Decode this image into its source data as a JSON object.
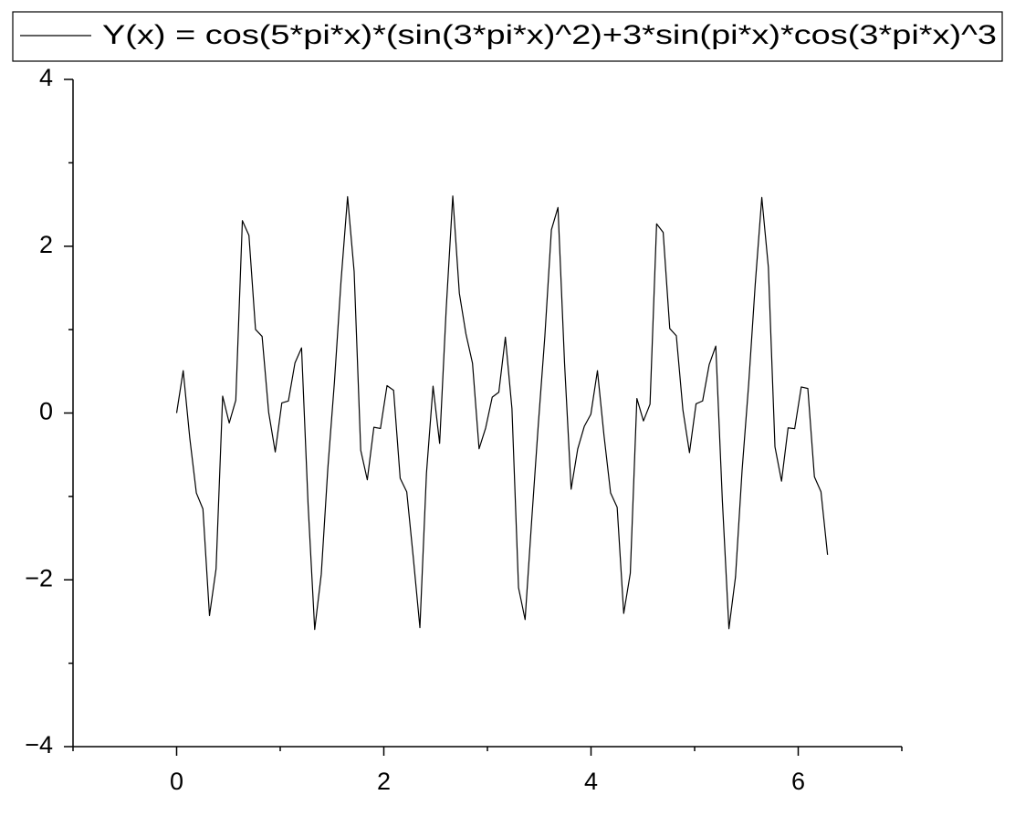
{
  "chart_data": {
    "type": "line",
    "legend": "top",
    "grid": false,
    "x": [
      0,
      0.0635,
      0.1269,
      0.1904,
      0.2539,
      0.3173,
      0.3808,
      0.4443,
      0.5077,
      0.5712,
      0.6347,
      0.6981,
      0.7616,
      0.8251,
      0.8885,
      0.952,
      1.0155,
      1.0789,
      1.1424,
      1.2059,
      1.2693,
      1.3328,
      1.3963,
      1.4597,
      1.5232,
      1.5867,
      1.6501,
      1.7136,
      1.7771,
      1.8405,
      1.904,
      1.9675,
      2.0309,
      2.0944,
      2.1579,
      2.2213,
      2.2848,
      2.3483,
      2.4117,
      2.4752,
      2.5387,
      2.6021,
      2.6656,
      2.7291,
      2.7925,
      2.856,
      2.9195,
      2.9829,
      3.0464,
      3.1099,
      3.1733,
      3.2368,
      3.3003,
      3.3637,
      3.4272,
      3.4907,
      3.5541,
      3.6176,
      3.6811,
      3.7445,
      3.808,
      3.8715,
      3.9349,
      3.9984,
      4.0619,
      4.1253,
      4.1888,
      4.2523,
      4.3157,
      4.3792,
      4.4427,
      4.5061,
      4.5696,
      4.6331,
      4.6965,
      4.76,
      4.8235,
      4.8869,
      4.9504,
      5.0139,
      5.0773,
      5.1408,
      5.2043,
      5.2677,
      5.3312,
      5.3947,
      5.4581,
      5.5216,
      5.5851,
      5.6485,
      5.712,
      5.7755,
      5.8389,
      5.9024,
      5.9659,
      6.0293,
      6.0928,
      6.1563,
      6.2197,
      6.2832
    ],
    "series": [
      {
        "name": "Y(x) = cos(5*pi*x)*(sin(3*pi*x)^2)+3*sin(pi*x)*cos(3*pi*x)^3",
        "color": "#000000",
        "values": [
          0,
          0.5077,
          -0.2987,
          -0.9585,
          -1.1508,
          -2.4289,
          -1.8676,
          0.2023,
          -0.1194,
          0.1535,
          2.3062,
          2.1301,
          1.0018,
          0.9187,
          0.0084,
          -0.4671,
          0.1207,
          0.1447,
          0.601,
          0.7807,
          -1.1058,
          -2.5956,
          -1.9326,
          -0.6616,
          0.37,
          1.5775,
          2.5935,
          1.6955,
          -0.4461,
          -0.8009,
          -0.1712,
          -0.1857,
          0.3287,
          0.272,
          -0.7825,
          -0.9449,
          -1.7364,
          -2.5736,
          -0.721,
          0.3222,
          -0.3637,
          1.2468,
          2.6026,
          1.4355,
          0.9495,
          0.5967,
          -0.4294,
          -0.1794,
          0.1903,
          0.2489,
          0.9093,
          0.0527,
          -2.0945,
          -2.4767,
          -1.2885,
          -0.1471,
          0.9164,
          2.1966,
          2.4642,
          0.5955,
          -0.9139,
          -0.4313,
          -0.1603,
          -0.0151,
          0.508,
          -0.2683,
          -0.9572,
          -1.1305,
          -2.4029,
          -1.9204,
          0.174,
          -0.0951,
          0.1057,
          2.2679,
          2.1651,
          1.0129,
          0.9262,
          0.038,
          -0.4756,
          0.1106,
          0.145,
          0.5811,
          0.8029,
          -1.0473,
          -2.5864,
          -1.9644,
          -0.6903,
          0.3437,
          1.5441,
          2.5846,
          1.747,
          -0.4054,
          -0.8168,
          -0.1776,
          -0.1883,
          0.3125,
          0.2939,
          -0.7643,
          -0.944,
          -1.6996
        ]
      }
    ],
    "xlim": [
      -1,
      7
    ],
    "ylim": [
      -4,
      4
    ],
    "xticks": [
      0,
      2,
      4,
      6
    ],
    "yticks": [
      {
        "value": -4,
        "label": "−4"
      },
      {
        "value": -2,
        "label": "−2"
      },
      0,
      2,
      4
    ],
    "xminorticks": [
      -1,
      1,
      3,
      5,
      7
    ],
    "yminorticks": [
      -3,
      -1,
      1,
      3
    ]
  }
}
